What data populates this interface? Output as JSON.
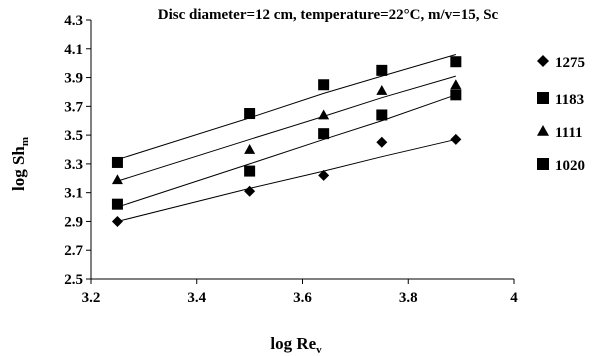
{
  "chart_data": {
    "type": "scatter",
    "title": "Disc diameter=12 cm, temperature=22°C, m/v=15, Sc",
    "xlabel": {
      "main": "log Re",
      "sub": "v"
    },
    "ylabel": {
      "main": "log Sh",
      "sub": "m"
    },
    "xlim": [
      3.2,
      4.0
    ],
    "ylim": [
      2.5,
      4.3
    ],
    "xticks": [
      "3.2",
      "3.4",
      "3.6",
      "3.8",
      "4"
    ],
    "yticks": [
      "2.5",
      "2.7",
      "2.9",
      "3.1",
      "3.3",
      "3.5",
      "3.7",
      "3.9",
      "4.1",
      "4.3"
    ],
    "grid": false,
    "legend_position": "right",
    "x": [
      3.25,
      3.5,
      3.64,
      3.75,
      3.89
    ],
    "series": [
      {
        "name": "1275",
        "marker": "diamond",
        "values": [
          2.9,
          3.11,
          3.22,
          3.45,
          3.47
        ],
        "fit": [
          2.9,
          3.13,
          3.25,
          3.35,
          3.47
        ]
      },
      {
        "name": "1183",
        "marker": "square",
        "values": [
          3.02,
          3.25,
          3.51,
          3.64,
          3.78
        ],
        "fit": [
          3.0,
          3.3,
          3.47,
          3.6,
          3.78
        ]
      },
      {
        "name": "1111",
        "marker": "triangle",
        "values": [
          3.19,
          3.4,
          3.64,
          3.81,
          3.85
        ],
        "fit": [
          3.18,
          3.47,
          3.63,
          3.76,
          3.91
        ]
      },
      {
        "name": "1020",
        "marker": "square",
        "values": [
          3.31,
          3.65,
          3.85,
          3.95,
          4.01
        ],
        "fit": [
          3.33,
          3.62,
          3.79,
          3.91,
          4.06
        ]
      }
    ],
    "colors": {
      "marker": "#000000",
      "line": "#000000",
      "axis": "#000000"
    }
  }
}
